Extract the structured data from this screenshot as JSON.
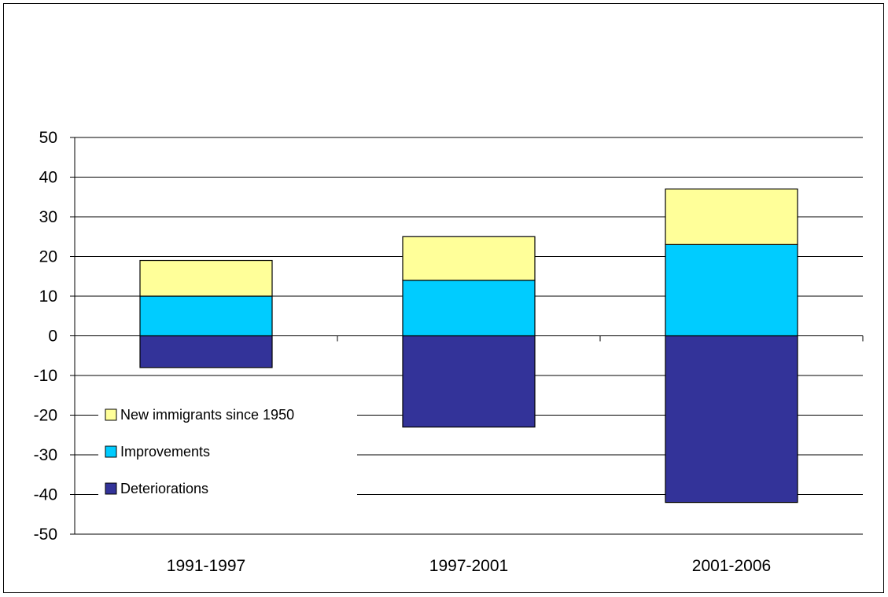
{
  "chart_data": {
    "type": "bar",
    "stacked": true,
    "categories": [
      "1991-1997",
      "1997-2001",
      "2001-2006"
    ],
    "series": [
      {
        "name": "Deteriorations",
        "color": "#333399",
        "values": [
          -8,
          -23,
          -42
        ]
      },
      {
        "name": "Improvements",
        "color": "#00CCFF",
        "values": [
          10,
          14,
          23
        ]
      },
      {
        "name": "New immigrants since 1950",
        "color": "#FFFF99",
        "values": [
          9,
          11,
          14
        ]
      }
    ],
    "title": "",
    "xlabel": "",
    "ylabel": "",
    "ylim": [
      -50,
      50
    ],
    "yticks": [
      50,
      40,
      30,
      20,
      10,
      0,
      -10,
      -20,
      -30,
      -40,
      -50
    ],
    "grid": true,
    "legend_position": "left"
  }
}
